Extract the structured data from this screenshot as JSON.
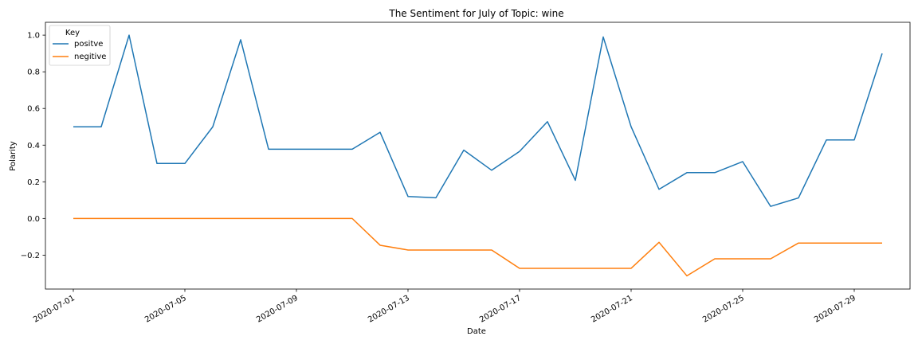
{
  "chart_data": {
    "type": "line",
    "title": "The Sentiment for July of Topic: wine",
    "xlabel": "Date",
    "ylabel": "Polarity",
    "x": [
      "2020-07-01",
      "2020-07-02",
      "2020-07-03",
      "2020-07-04",
      "2020-07-05",
      "2020-07-06",
      "2020-07-07",
      "2020-07-08",
      "2020-07-09",
      "2020-07-10",
      "2020-07-11",
      "2020-07-12",
      "2020-07-13",
      "2020-07-14",
      "2020-07-15",
      "2020-07-16",
      "2020-07-17",
      "2020-07-18",
      "2020-07-19",
      "2020-07-20",
      "2020-07-21",
      "2020-07-22",
      "2020-07-23",
      "2020-07-24",
      "2020-07-25",
      "2020-07-26",
      "2020-07-27",
      "2020-07-28",
      "2020-07-29",
      "2020-07-30"
    ],
    "xticks": [
      "2020-07-01",
      "2020-07-05",
      "2020-07-09",
      "2020-07-13",
      "2020-07-17",
      "2020-07-21",
      "2020-07-25",
      "2020-07-29"
    ],
    "yticks": [
      "−0.2",
      "0.0",
      "0.2",
      "0.4",
      "0.6",
      "0.8",
      "1.0"
    ],
    "yticks_values": [
      -0.2,
      0.0,
      0.2,
      0.4,
      0.6,
      0.8,
      1.0
    ],
    "ylim": [
      -0.385,
      1.07
    ],
    "xlim": [
      "2020-06-30",
      "2020-07-31"
    ],
    "grid": false,
    "legend": {
      "title": "Key",
      "placement": "top-left"
    },
    "series": [
      {
        "name": "positve",
        "color": "#1f77b4",
        "values": [
          0.5,
          0.5,
          1.0,
          0.3,
          0.3,
          0.5,
          0.975,
          0.378,
          0.378,
          0.378,
          0.378,
          0.47,
          0.12,
          0.113,
          0.373,
          0.263,
          0.366,
          0.528,
          0.208,
          0.99,
          0.5,
          0.159,
          0.25,
          0.25,
          0.31,
          0.066,
          0.112,
          0.428,
          0.428,
          0.9
        ]
      },
      {
        "name": "negitive",
        "color": "#ff7f0e",
        "values": [
          0.0,
          0.0,
          0.0,
          0.0,
          0.0,
          0.0,
          0.0,
          0.0,
          0.0,
          0.0,
          0.0,
          -0.146,
          -0.172,
          -0.172,
          -0.172,
          -0.172,
          -0.272,
          -0.272,
          -0.272,
          -0.272,
          -0.272,
          -0.13,
          -0.313,
          -0.22,
          -0.22,
          -0.22,
          -0.134,
          -0.134,
          -0.134,
          -0.134
        ]
      }
    ]
  }
}
